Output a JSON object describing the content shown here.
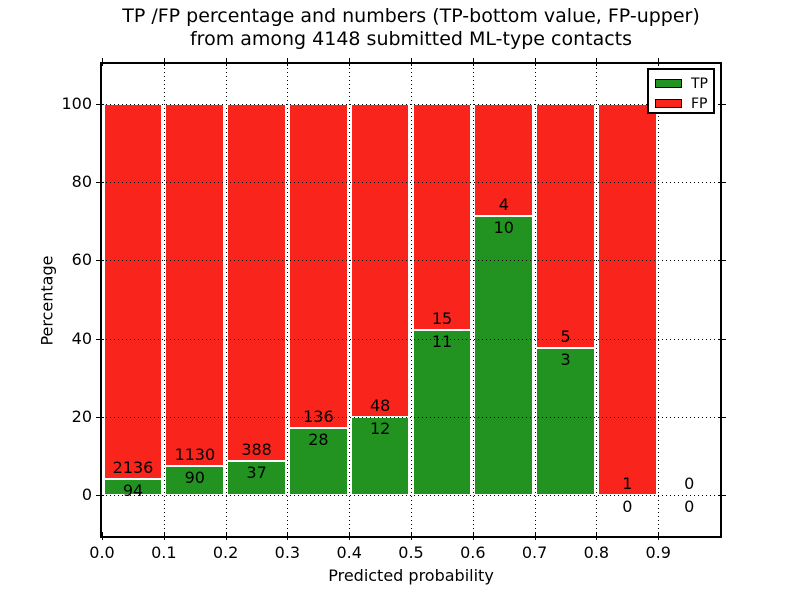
{
  "title": {
    "line1": "TP /FP percentage and numbers (TP-bottom value, FP-upper)",
    "line2": "from among 4148 submitted ML-type contacts"
  },
  "axes": {
    "xlabel": "Predicted probability",
    "ylabel": "Percentage"
  },
  "legend": {
    "position": "upper right",
    "items": [
      {
        "label": "TP",
        "color": "#229321"
      },
      {
        "label": "FP",
        "color": "#f9241b"
      }
    ]
  },
  "chart_data": {
    "type": "bar",
    "stacked": true,
    "normalized_to_percent": true,
    "title": "TP /FP percentage and numbers (TP-bottom value, FP-upper)\nfrom among 4148 submitted ML-type contacts",
    "xlabel": "Predicted probability",
    "ylabel": "Percentage",
    "total_contacts": 4148,
    "bin_edges": [
      0.0,
      0.1,
      0.2,
      0.3,
      0.4,
      0.5,
      0.6,
      0.7,
      0.8,
      0.9,
      1.0
    ],
    "series": [
      {
        "name": "TP",
        "color": "#229321",
        "counts": [
          94,
          90,
          37,
          28,
          12,
          11,
          10,
          3,
          0,
          0
        ]
      },
      {
        "name": "FP",
        "color": "#f9241b",
        "counts": [
          2136,
          1130,
          388,
          136,
          48,
          15,
          4,
          5,
          1,
          0
        ]
      }
    ],
    "tp_percent_per_bin": [
      4.2,
      7.4,
      8.7,
      17.1,
      20.0,
      42.3,
      71.4,
      37.5,
      0.0,
      null
    ],
    "xlim": [
      0.0,
      1.0
    ],
    "ylim": [
      -10.5,
      110
    ],
    "xtick_values": [
      0.0,
      0.1,
      0.2,
      0.3,
      0.4,
      0.5,
      0.6,
      0.7,
      0.8,
      0.9
    ],
    "xtick_labels": [
      "0.0",
      "0.1",
      "0.2",
      "0.3",
      "0.4",
      "0.5",
      "0.6",
      "0.7",
      "0.8",
      "0.9"
    ],
    "ytick_values": [
      0,
      20,
      40,
      60,
      80,
      100
    ],
    "ytick_labels": [
      "0",
      "20",
      "40",
      "60",
      "80",
      "100"
    ],
    "grid": "dotted",
    "legend_position": "upper right"
  }
}
